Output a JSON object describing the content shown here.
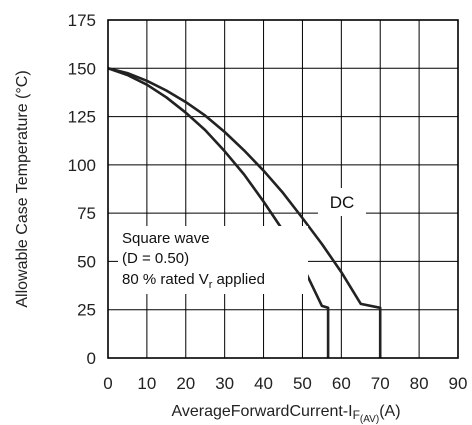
{
  "chart_data": {
    "type": "line",
    "xlabel": {
      "main": "AverageForwardCurrent-I",
      "sub": "F",
      "sub2": "(AV)",
      "unit": "(A)"
    },
    "ylabel": "Allowable Case Temperature (°C)",
    "xlim": [
      0,
      90
    ],
    "ylim": [
      0,
      175
    ],
    "x_ticks": [
      "0",
      "10",
      "20",
      "30",
      "40",
      "50",
      "60",
      "70",
      "80",
      "90"
    ],
    "y_ticks": [
      "0",
      "25",
      "50",
      "75",
      "100",
      "125",
      "150",
      "175"
    ],
    "grid": true,
    "series": [
      {
        "name": "Square wave",
        "x": [
          0,
          5,
          10,
          15,
          20,
          25,
          30,
          35,
          40,
          45,
          50,
          55,
          56.6,
          56.6
        ],
        "y": [
          150,
          146.5,
          141.5,
          135,
          127,
          118,
          107,
          95,
          81,
          66,
          48,
          27,
          26,
          0
        ]
      },
      {
        "name": "DC",
        "x": [
          0,
          5,
          10,
          15,
          20,
          25,
          30,
          35,
          40,
          45,
          50,
          55,
          60,
          65,
          70,
          70
        ],
        "y": [
          150,
          147.5,
          143.5,
          138.5,
          132.5,
          125.5,
          117,
          107.5,
          97,
          85.5,
          72.5,
          59,
          44.5,
          28,
          26,
          0
        ]
      }
    ],
    "annotations": {
      "dc_label": "DC",
      "square_line1": "Square wave",
      "square_line2": "(D = 0.50)",
      "square_line3_main": "80 % rated V",
      "square_line3_sub": "r",
      "square_line3_end": " applied"
    }
  }
}
